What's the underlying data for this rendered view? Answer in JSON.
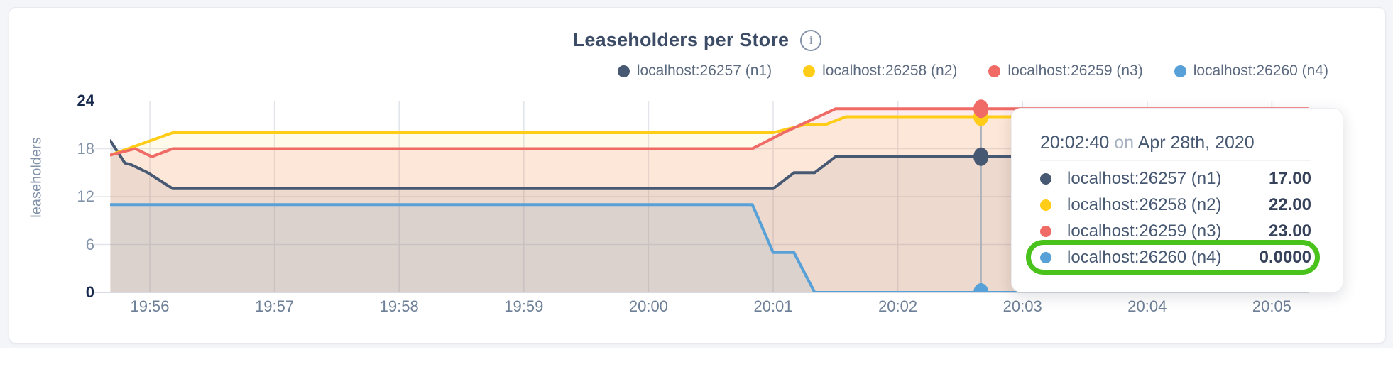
{
  "card": {
    "title": "Leaseholders per Store"
  },
  "icons": {
    "info_glyph": "i"
  },
  "chart_data": {
    "type": "area",
    "title": "Leaseholders per Store",
    "ylabel": "leaseholders",
    "ylim": [
      0,
      24
    ],
    "grid": true,
    "legend_position": "top-right",
    "x_unit": "seconds relative to 19:56:00",
    "x_domain": [
      -19,
      558
    ],
    "x_ticks": [
      "19:56",
      "19:57",
      "19:58",
      "19:59",
      "20:00",
      "20:01",
      "20:02",
      "20:03",
      "20:04",
      "20:05"
    ],
    "y_ticks": [
      {
        "label": "24",
        "value": 24,
        "bold": true
      },
      {
        "label": "18",
        "value": 18,
        "bold": false
      },
      {
        "label": "12",
        "value": 12,
        "bold": false
      },
      {
        "label": "6",
        "value": 6,
        "bold": false
      },
      {
        "label": "0",
        "value": 0,
        "bold": true
      }
    ],
    "grid_y_values": [
      6,
      12,
      18
    ],
    "series": [
      {
        "name": "localhost:26257 (n1)",
        "color": "#475872",
        "fill_opacity": 0.1,
        "points": [
          [
            -19,
            19
          ],
          [
            -12,
            16.2
          ],
          [
            -9,
            16
          ],
          [
            -1,
            15
          ],
          [
            11,
            13
          ],
          [
            300,
            13
          ],
          [
            310,
            15
          ],
          [
            320,
            15
          ],
          [
            330,
            17
          ],
          [
            558,
            17
          ]
        ]
      },
      {
        "name": "localhost:26258 (n2)",
        "color": "#ffcd17",
        "fill_opacity": 0.09,
        "points": [
          [
            -19,
            17.2
          ],
          [
            11,
            20
          ],
          [
            300,
            20
          ],
          [
            315,
            21
          ],
          [
            325,
            21
          ],
          [
            335,
            22
          ],
          [
            558,
            22
          ]
        ]
      },
      {
        "name": "localhost:26259 (n3)",
        "color": "#f06b66",
        "fill_opacity": 0.13,
        "points": [
          [
            -19,
            17.2
          ],
          [
            -7,
            18
          ],
          [
            1,
            17
          ],
          [
            11,
            18
          ],
          [
            290,
            18
          ],
          [
            305,
            20
          ],
          [
            330,
            23
          ],
          [
            558,
            23
          ]
        ]
      },
      {
        "name": "localhost:26260 (n4)",
        "color": "#57a1d8",
        "fill_opacity": 0.12,
        "points": [
          [
            -19,
            11
          ],
          [
            290,
            11
          ],
          [
            300,
            5
          ],
          [
            310,
            5
          ],
          [
            320,
            0
          ],
          [
            558,
            0
          ]
        ]
      }
    ]
  },
  "hover": {
    "time_offset_seconds": 400
  },
  "tooltip": {
    "time": "20:02:40",
    "on_word": "on",
    "date": "Apr 28th, 2020",
    "rows": [
      {
        "name": "localhost:26257 (n1)",
        "value": "17.00",
        "color": "#475872",
        "highlighted": false
      },
      {
        "name": "localhost:26258 (n2)",
        "value": "22.00",
        "color": "#ffcd17",
        "highlighted": false
      },
      {
        "name": "localhost:26259 (n3)",
        "value": "23.00",
        "color": "#f06b66",
        "highlighted": false
      },
      {
        "name": "localhost:26260 (n4)",
        "value": "0.0000",
        "color": "#57a1d8",
        "highlighted": true
      }
    ],
    "highlight_color": "#49c21b"
  }
}
